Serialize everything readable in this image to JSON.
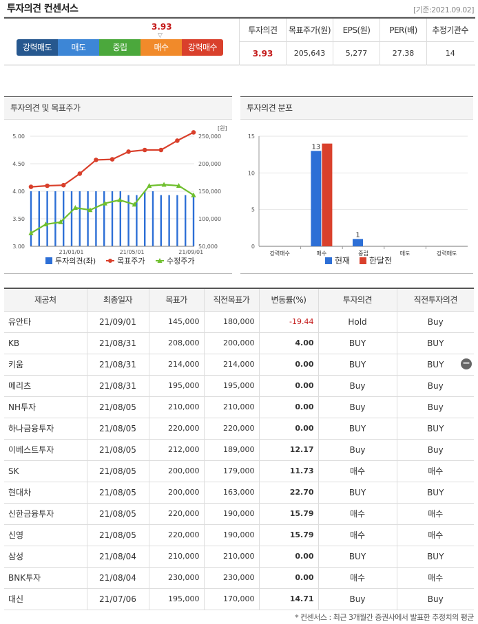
{
  "header": {
    "title": "투자의견 컨센서스",
    "date": "[기준:2021.09.02]"
  },
  "consensus": {
    "scale": [
      "강력매도",
      "매도",
      "중립",
      "매수",
      "강력매수"
    ],
    "marker_value": "3.93",
    "marker_fraction": 0.7,
    "headers": [
      "투자의견",
      "목표주가(원)",
      "EPS(원)",
      "PER(배)",
      "추정기관수"
    ],
    "values": [
      "3.93",
      "205,643",
      "5,277",
      "27.38",
      "14"
    ]
  },
  "panel1": {
    "title": "투자의견 및 목표주가"
  },
  "panel2": {
    "title": "투자의견 분포"
  },
  "chart_data": [
    {
      "type": "bar",
      "title": "투자의견 및 목표주가",
      "unit_right": "[원]",
      "x_ticks": [
        "21/01/01",
        "21/05/01",
        "21/09/01"
      ],
      "y_left": {
        "range": [
          3.0,
          5.0
        ],
        "ticks": [
          "3.00",
          "3.50",
          "4.00",
          "4.50",
          "5.00"
        ]
      },
      "y_right": {
        "range": [
          50000,
          250000
        ],
        "ticks": [
          "50,000",
          "100,000",
          "150,000",
          "200,000",
          "250,000"
        ]
      },
      "bars": {
        "name": "투자의견(좌)",
        "values": [
          4.0,
          4.0,
          4.0,
          4.0,
          4.0,
          4.0,
          4.0,
          4.0,
          4.0,
          4.0,
          4.0,
          4.0,
          3.93,
          3.93,
          4.0,
          4.0,
          3.93,
          3.93,
          3.93,
          3.93,
          3.93
        ]
      },
      "series": [
        {
          "name": "목표주가",
          "color": "#d9402c",
          "values": [
            158000,
            160000,
            161000,
            182000,
            207000,
            208000,
            222000,
            225000,
            225000,
            242000,
            257000
          ]
        },
        {
          "name": "수정주가",
          "color": "#6fbf2e",
          "values": [
            74000,
            90000,
            94000,
            120000,
            116000,
            128000,
            134000,
            126000,
            160000,
            162000,
            160000,
            143000
          ]
        }
      ]
    },
    {
      "type": "bar",
      "title": "투자의견 분포",
      "categories": [
        "강력매수",
        "매수",
        "중립",
        "매도",
        "강력매도"
      ],
      "y_range": [
        0,
        15
      ],
      "y_ticks": [
        "0",
        "5",
        "10",
        "15"
      ],
      "series": [
        {
          "name": "현재",
          "color": "#2d6fd6",
          "values": [
            0,
            13,
            1,
            0,
            0
          ]
        },
        {
          "name": "한달전",
          "color": "#d9402c",
          "values": [
            0,
            14,
            0,
            0,
            0
          ]
        }
      ],
      "data_labels": [
        "13",
        "1"
      ]
    }
  ],
  "table": {
    "headers": [
      "제공처",
      "최종일자",
      "목표가",
      "직전목표가",
      "변동률(%)",
      "투자의견",
      "직전투자의견"
    ],
    "rows": [
      [
        "유안타",
        "21/09/01",
        "145,000",
        "180,000",
        "-19.44",
        "Hold",
        "Buy"
      ],
      [
        "KB",
        "21/08/31",
        "208,000",
        "200,000",
        "4.00",
        "BUY",
        "BUY"
      ],
      [
        "키움",
        "21/08/31",
        "214,000",
        "214,000",
        "0.00",
        "BUY",
        "BUY"
      ],
      [
        "메리츠",
        "21/08/31",
        "195,000",
        "195,000",
        "0.00",
        "Buy",
        "Buy"
      ],
      [
        "NH투자",
        "21/08/05",
        "210,000",
        "210,000",
        "0.00",
        "Buy",
        "Buy"
      ],
      [
        "하나금융투자",
        "21/08/05",
        "220,000",
        "220,000",
        "0.00",
        "BUY",
        "BUY"
      ],
      [
        "이베스트투자",
        "21/08/05",
        "212,000",
        "189,000",
        "12.17",
        "Buy",
        "Buy"
      ],
      [
        "SK",
        "21/08/05",
        "200,000",
        "179,000",
        "11.73",
        "매수",
        "매수"
      ],
      [
        "현대차",
        "21/08/05",
        "200,000",
        "163,000",
        "22.70",
        "BUY",
        "BUY"
      ],
      [
        "신한금융투자",
        "21/08/05",
        "220,000",
        "190,000",
        "15.79",
        "매수",
        "매수"
      ],
      [
        "신영",
        "21/08/05",
        "220,000",
        "190,000",
        "15.79",
        "매수",
        "매수"
      ],
      [
        "삼성",
        "21/08/04",
        "210,000",
        "210,000",
        "0.00",
        "BUY",
        "BUY"
      ],
      [
        "BNK투자",
        "21/08/04",
        "230,000",
        "230,000",
        "0.00",
        "매수",
        "매수"
      ],
      [
        "대신",
        "21/07/06",
        "195,000",
        "170,000",
        "14.71",
        "Buy",
        "Buy"
      ]
    ],
    "collapse_icon": "minus-circle-icon"
  },
  "footnote": "* 컨센서스 : 최근 3개월간 증권사에서 발표한 추정치의 평균"
}
